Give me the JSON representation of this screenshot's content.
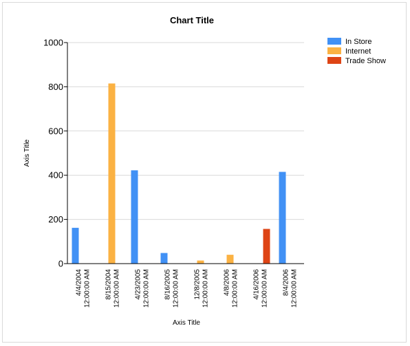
{
  "chart_data": {
    "type": "bar",
    "title": "Chart Title",
    "xlabel": "Axis Title",
    "ylabel": "Axis Title",
    "ylim": [
      0,
      1000
    ],
    "yticks": [
      0,
      200,
      400,
      600,
      800,
      1000
    ],
    "grid": true,
    "legend_position": "top-right",
    "categories": [
      [
        "4/4/2004",
        "12:00:00 AM"
      ],
      [
        "8/15/2004",
        "12:00:00 AM"
      ],
      [
        "4/23/2005",
        "12:00:00 AM"
      ],
      [
        "8/16/2005",
        "12:00:00 AM"
      ],
      [
        "12/8/2005",
        "12:00:00 AM"
      ],
      [
        "4/8/2006",
        "12:00:00 AM"
      ],
      [
        "4/16/2006",
        "12:00:00 AM"
      ],
      [
        "8/4/2006",
        "12:00:00 AM"
      ]
    ],
    "series": [
      {
        "name": "In Store",
        "color": "#4191F5",
        "values": [
          162,
          null,
          422,
          48,
          null,
          null,
          null,
          415
        ]
      },
      {
        "name": "Internet",
        "color": "#FBB243",
        "values": [
          null,
          815,
          null,
          null,
          14,
          40,
          null,
          null
        ]
      },
      {
        "name": "Trade Show",
        "color": "#DE4415",
        "values": [
          null,
          null,
          null,
          null,
          null,
          null,
          157,
          null
        ]
      }
    ]
  }
}
